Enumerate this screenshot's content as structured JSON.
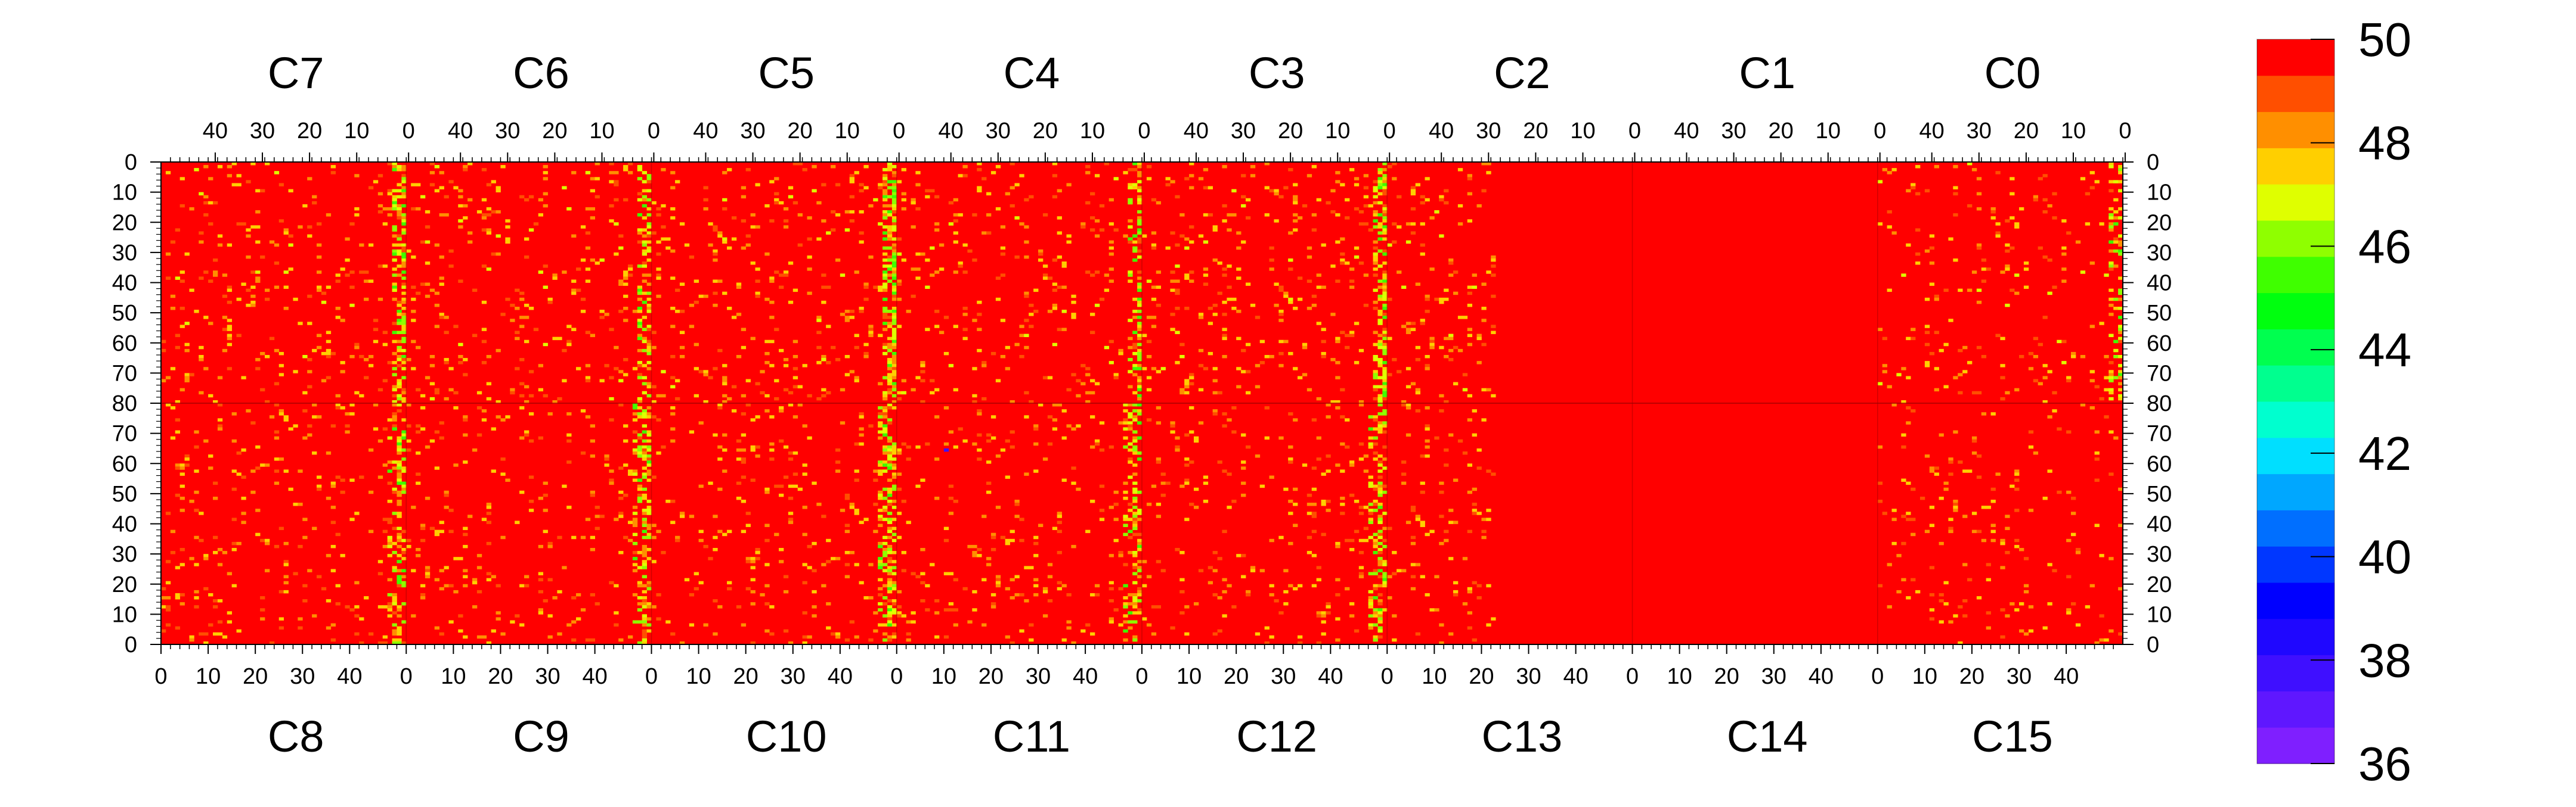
{
  "chart_data": {
    "type": "heatmap",
    "title": "",
    "top_chip_labels": [
      "C7",
      "C6",
      "C5",
      "C4",
      "C3",
      "C2",
      "C1",
      "C0"
    ],
    "bottom_chip_labels": [
      "C8",
      "C9",
      "C10",
      "C11",
      "C12",
      "C13",
      "C14",
      "C15"
    ],
    "columns_per_chip": 52,
    "x_tick_values_top": [
      40,
      30,
      20,
      10,
      0
    ],
    "x_tick_values_bottom": [
      0,
      10,
      20,
      30,
      40
    ],
    "y_ticks_top_half": [
      0,
      10,
      20,
      30,
      40,
      50,
      60,
      70,
      80
    ],
    "y_ticks_bottom_half": [
      70,
      60,
      50,
      40,
      30,
      20,
      10,
      0
    ],
    "y_range_per_half": [
      0,
      80
    ],
    "z_range": [
      36,
      50
    ],
    "z_contour_levels": 20,
    "colorbar_ticks": [
      36,
      38,
      40,
      42,
      44,
      46,
      48,
      50
    ],
    "dominant_value": 50,
    "max_value_color": "#ff0000",
    "notes": "Pixel-level heatmap: nearly all cells at 50 (red). Scattered lower values (orange/yellow, ~46-49) concentrate near chip column 0 of C7/C6/C5/C4/C3 (top) and C9-C12 (bottom). Chips C1/C14 and right part of C2/C13 are uniform 50. One isolated low cell (~38, blue) in C11 near column 10, row ~64.",
    "hot_columns": [
      {
        "chip": "C7",
        "col": 0,
        "intensity": 0.55
      },
      {
        "chip": "C6",
        "col": 0,
        "intensity": 0.45
      },
      {
        "chip": "C5",
        "col": 0,
        "intensity": 0.75
      },
      {
        "chip": "C4",
        "col": 0,
        "intensity": 0.55
      },
      {
        "chip": "C3",
        "col": 0,
        "intensity": 0.65
      },
      {
        "chip": "C8",
        "col": 50,
        "intensity": 0.5
      },
      {
        "chip": "C9",
        "col": 50,
        "intensity": 0.45
      },
      {
        "chip": "C10",
        "col": 50,
        "intensity": 0.55
      },
      {
        "chip": "C11",
        "col": 50,
        "intensity": 0.45
      },
      {
        "chip": "C12",
        "col": 50,
        "intensity": 0.5
      },
      {
        "chip": "C0",
        "col": 0,
        "intensity": 0.35
      }
    ],
    "outlier_cells": [
      {
        "chip": "C11",
        "col": 10,
        "row": 64,
        "value": 38
      }
    ]
  }
}
